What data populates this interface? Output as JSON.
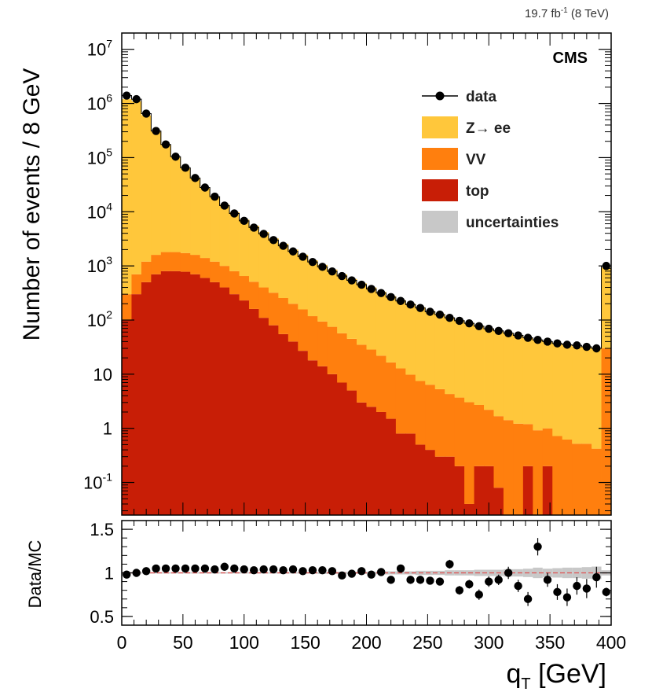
{
  "header": {
    "lumi": "19.7 fb",
    "lumi_sup": "-1",
    "energy": " (8 TeV)",
    "experiment": "CMS"
  },
  "colors": {
    "zee": "#ffc73b",
    "vv": "#ff7f0e",
    "top": "#c81e06",
    "data": "#000000",
    "uncert": "#c8c8c8",
    "ratio_line": "#e05050"
  },
  "chart_data": [
    {
      "type": "bar",
      "stacked": true,
      "scale": "log",
      "title": "",
      "xlabel": "",
      "ylabel": "Number of events / 8 GeV",
      "xlim": [
        0,
        400
      ],
      "ylim": [
        0.025,
        20000000
      ],
      "bin_width": 8,
      "x": [
        4,
        12,
        20,
        28,
        36,
        44,
        52,
        60,
        68,
        76,
        84,
        92,
        100,
        108,
        116,
        124,
        132,
        140,
        148,
        156,
        164,
        172,
        180,
        188,
        196,
        204,
        212,
        220,
        228,
        236,
        244,
        252,
        260,
        268,
        276,
        284,
        292,
        300,
        308,
        316,
        324,
        332,
        340,
        348,
        356,
        364,
        372,
        380,
        388,
        396
      ],
      "y_ticks": [
        {
          "label": "10",
          "sup": "7",
          "value": 10000000
        },
        {
          "label": "10",
          "sup": "6",
          "value": 1000000
        },
        {
          "label": "10",
          "sup": "5",
          "value": 100000
        },
        {
          "label": "10",
          "sup": "4",
          "value": 10000
        },
        {
          "label": "10",
          "sup": "3",
          "value": 1000
        },
        {
          "label": "10",
          "sup": "2",
          "value": 100
        },
        {
          "label": "10",
          "sup": "",
          "value": 10
        },
        {
          "label": "1",
          "sup": "",
          "value": 1
        },
        {
          "label": "10",
          "sup": "-1",
          "value": 0.1
        }
      ],
      "legend_position": "top-right",
      "legend": [
        {
          "label": "data",
          "key": "data"
        },
        {
          "label": "Z→ ee",
          "key": "zee"
        },
        {
          "label": "VV",
          "key": "vv"
        },
        {
          "label": "top",
          "key": "top"
        },
        {
          "label": "uncertainties",
          "key": "uncert"
        }
      ],
      "series": [
        {
          "name": "top",
          "values": [
            100,
            300,
            500,
            700,
            800,
            800,
            780,
            700,
            600,
            500,
            400,
            300,
            230,
            160,
            110,
            80,
            55,
            40,
            27,
            18,
            14,
            10,
            7,
            5,
            3,
            2.5,
            2,
            1.5,
            0.8,
            0.8,
            0.5,
            0.4,
            0.3,
            0.3,
            0.2,
            0.04,
            0.2,
            0.2,
            0.08,
            0.02,
            0.02,
            0.2,
            0.02,
            0.2,
            0.02,
            0.02,
            0.02,
            0.02,
            0.02,
            0.02
          ]
        },
        {
          "name": "VV",
          "values": [
            200,
            400,
            700,
            900,
            1000,
            1000,
            950,
            900,
            800,
            700,
            600,
            500,
            420,
            350,
            290,
            240,
            200,
            160,
            130,
            100,
            80,
            65,
            50,
            40,
            32,
            26,
            20,
            15,
            12,
            9,
            7,
            6,
            5,
            4,
            3.5,
            3,
            2.5,
            2,
            1.6,
            1.4,
            1.2,
            1,
            0.9,
            0.8,
            0.7,
            0.6,
            0.5,
            0.5,
            0.4,
            30
          ]
        },
        {
          "name": "Z→ ee",
          "values": [
            1200000,
            1100000,
            600000,
            300000,
            170000,
            100000,
            62000,
            40000,
            27000,
            18000,
            12500,
            9000,
            6500,
            5000,
            3800,
            2900,
            2300,
            1800,
            1450,
            1150,
            950,
            780,
            640,
            530,
            440,
            370,
            310,
            260,
            220,
            190,
            165,
            140,
            125,
            108,
            96,
            86,
            76,
            68,
            62,
            56,
            51,
            46,
            42,
            39,
            36,
            34,
            32,
            31,
            30,
            900
          ]
        }
      ],
      "data_points": [
        1400000,
        1200000,
        650000,
        310000,
        175000,
        104000,
        65000,
        42000,
        28000,
        19000,
        13000,
        9300,
        6800,
        5100,
        3900,
        3000,
        2350,
        1850,
        1480,
        1180,
        960,
        790,
        650,
        540,
        450,
        375,
        315,
        265,
        225,
        193,
        167,
        142,
        126,
        110,
        97,
        87,
        77,
        69,
        63,
        57,
        52,
        47,
        43,
        40,
        37,
        35,
        34,
        32,
        30,
        1000
      ]
    },
    {
      "type": "scatter",
      "title": "",
      "xlabel": "q",
      "xlabel_sub": "T",
      "xlabel_unit": " [GeV]",
      "ylabel": "Data/MC",
      "xlim": [
        0,
        400
      ],
      "ylim": [
        0.4,
        1.6
      ],
      "x_ticks": [
        "0",
        "50",
        "100",
        "150",
        "200",
        "250",
        "300",
        "350",
        "400"
      ],
      "y_ticks": [
        "1.5",
        "1",
        "0.5"
      ],
      "x": [
        4,
        12,
        20,
        28,
        36,
        44,
        52,
        60,
        68,
        76,
        84,
        92,
        100,
        108,
        116,
        124,
        132,
        140,
        148,
        156,
        164,
        172,
        180,
        188,
        196,
        204,
        212,
        220,
        228,
        236,
        244,
        252,
        260,
        268,
        276,
        284,
        292,
        300,
        308,
        316,
        324,
        332,
        340,
        348,
        356,
        364,
        372,
        380,
        388,
        396
      ],
      "values": [
        0.98,
        1.0,
        1.02,
        1.05,
        1.05,
        1.05,
        1.05,
        1.05,
        1.05,
        1.04,
        1.07,
        1.05,
        1.04,
        1.03,
        1.04,
        1.04,
        1.03,
        1.04,
        1.02,
        1.03,
        1.03,
        1.02,
        0.97,
        0.99,
        1.02,
        0.98,
        1.01,
        0.92,
        1.05,
        0.92,
        0.92,
        0.91,
        0.9,
        1.1,
        0.8,
        0.87,
        0.75,
        0.9,
        0.92,
        1.0,
        0.85,
        0.7,
        1.3,
        0.92,
        0.78,
        0.72,
        0.85,
        0.82,
        0.95,
        0.78
      ],
      "errors": [
        0.01,
        0.01,
        0.01,
        0.01,
        0.01,
        0.01,
        0.01,
        0.01,
        0.01,
        0.01,
        0.01,
        0.01,
        0.01,
        0.01,
        0.01,
        0.01,
        0.01,
        0.01,
        0.01,
        0.01,
        0.02,
        0.02,
        0.02,
        0.02,
        0.02,
        0.02,
        0.03,
        0.03,
        0.03,
        0.03,
        0.04,
        0.04,
        0.04,
        0.05,
        0.05,
        0.05,
        0.06,
        0.06,
        0.06,
        0.07,
        0.07,
        0.08,
        0.1,
        0.08,
        0.09,
        0.1,
        0.1,
        0.11,
        0.12,
        0.05
      ],
      "reference_line": 1
    }
  ]
}
